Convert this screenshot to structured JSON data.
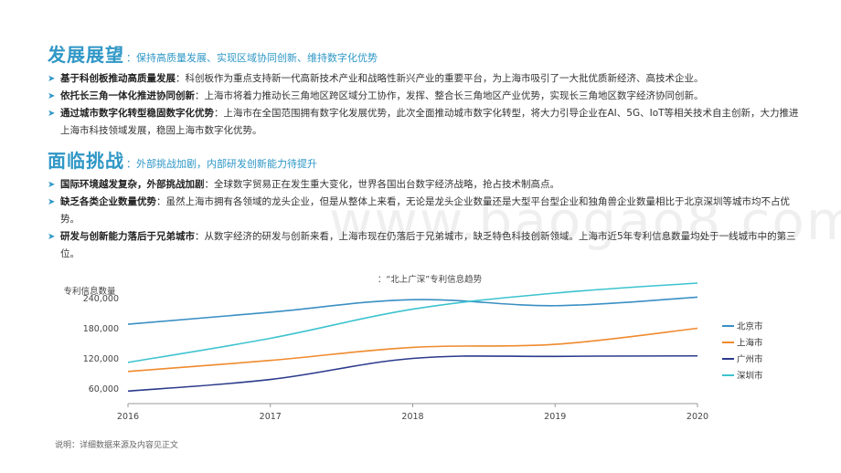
{
  "section1": {
    "title": "发展展望",
    "subtitle": "：保持高质量发展、实现区域协同创新、维持数字化优势",
    "bullets": [
      {
        "lead": "基于科创板推动高质量发展",
        "text": "：科创板作为重点支持新一代高新技术产业和战略性新兴产业的重要平台，为上海市吸引了一大批优质新经济、高技术企业。"
      },
      {
        "lead": "依托长三角一体化推进协同创新",
        "text": "：上海市将着力推动长三角地区跨区域分工协作，发挥、整合长三角地区产业优势，实现长三角地区数字经济协同创新。"
      },
      {
        "lead": "通过城市数字化转型稳固数字化优势",
        "text": "：上海市在全国范围拥有数字化发展优势，此次全面推动城市数字化转型，将大力引导企业在AI、5G、IoT等相关技术自主创新，大力推进上海市科技领域发展，稳固上海市数字化优势。"
      }
    ]
  },
  "section2": {
    "title": "面临挑战",
    "subtitle": "：外部挑战加剧，内部研发创新能力待提升",
    "bullets": [
      {
        "lead": "国际环境越发复杂，外部挑战加剧",
        "text": "：全球数字贸易正在发生重大变化，世界各国出台数字经济战略，抢占技术制高点。"
      },
      {
        "lead": "缺乏各类企业数量优势",
        "text": "：虽然上海市拥有各领域的龙头企业，但是从整体上来看，无论是龙头企业数量还是大型平台型企业和独角兽企业数量相比于北京深圳等城市均不占优势。"
      },
      {
        "lead": "研发与创新能力落后于兄弟城市",
        "text": "：从数字经济的研发与创新来看，上海市现在仍落后于兄弟城市，缺乏特色科技创新领域。上海市近5年专利信息数量均处于一线城市中的第三位。"
      }
    ]
  },
  "watermark": "www.baogao8.com",
  "chart_data": {
    "type": "line",
    "title": "：“北上广深”专利信息趋势",
    "ylabel": "专利信息数量",
    "x": [
      2016,
      2017,
      2018,
      2019,
      2020
    ],
    "yticks": [
      "240,000",
      "180,000",
      "120,000",
      "60,000"
    ],
    "ytick_values": [
      240000,
      180000,
      120000,
      60000
    ],
    "ylim": [
      30000,
      270000
    ],
    "legend_position": "right",
    "grid": false,
    "series": [
      {
        "name": "北京市",
        "color": "#3a8fc4",
        "values": [
          188000,
          212000,
          237000,
          225000,
          242000
        ]
      },
      {
        "name": "上海市",
        "color": "#ef8a2e",
        "values": [
          94000,
          116000,
          142000,
          148000,
          180000
        ]
      },
      {
        "name": "广州市",
        "color": "#2b3a8c",
        "values": [
          55000,
          78000,
          120000,
          124000,
          125000
        ]
      },
      {
        "name": "深圳市",
        "color": "#3cc3cf",
        "values": [
          112000,
          160000,
          218000,
          250000,
          270000
        ]
      }
    ]
  },
  "footnote": "说明：详细数据来源及内容见正文"
}
